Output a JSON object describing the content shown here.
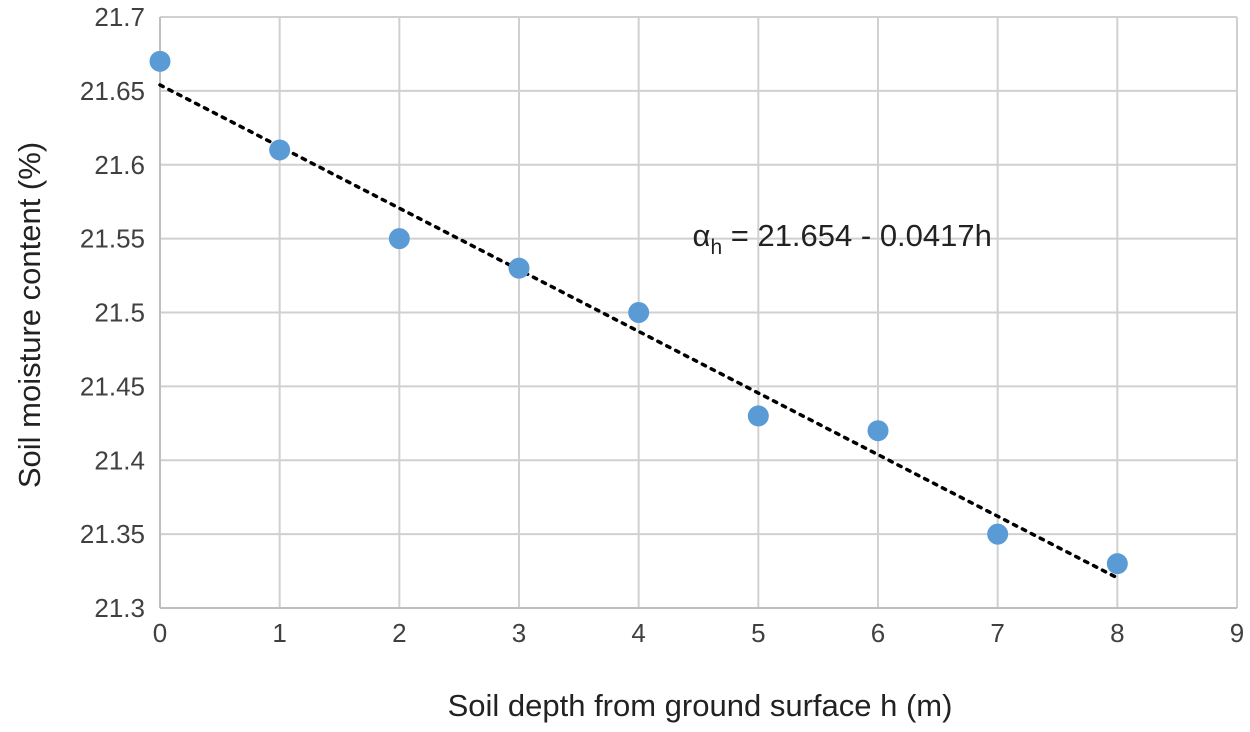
{
  "chart_data": {
    "type": "scatter",
    "title": "",
    "xlabel": "Soil depth from ground surface h (m)",
    "ylabel": "Soil moisture content (%)",
    "xlim": [
      0,
      9
    ],
    "ylim": [
      21.3,
      21.7
    ],
    "xticks": [
      "0",
      "1",
      "2",
      "3",
      "4",
      "5",
      "6",
      "7",
      "8",
      "9"
    ],
    "yticks": [
      "21.3",
      "21.35",
      "21.4",
      "21.45",
      "21.5",
      "21.55",
      "21.6",
      "21.65",
      "21.7"
    ],
    "grid": true,
    "series": [
      {
        "x": [
          0,
          1,
          2,
          3,
          4,
          5,
          6,
          7,
          8
        ],
        "y": [
          21.67,
          21.61,
          21.55,
          21.53,
          21.5,
          21.43,
          21.42,
          21.35,
          21.33
        ],
        "color": "#5b9bd5"
      }
    ],
    "trendline": {
      "style": "dotted",
      "color": "#000000",
      "intercept": 21.654,
      "slope": -0.0417,
      "x_range": [
        0,
        8
      ]
    },
    "annotation": {
      "symbol": "α",
      "subscript": "h",
      "text": " = 21.654 - 0.0417h",
      "x": 4.45,
      "y": 21.545
    }
  }
}
